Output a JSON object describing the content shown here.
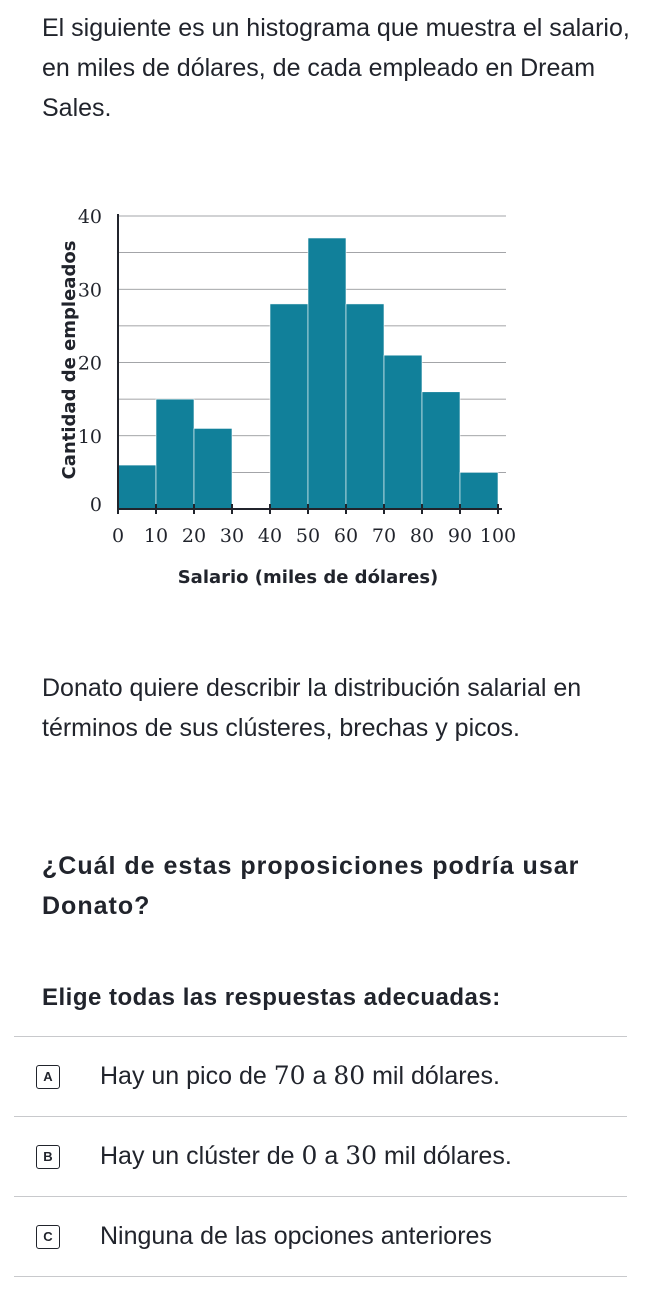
{
  "intro": "El siguiente es un histograma que muestra el salario, en miles de dólares, de cada empleado en Dream Sales.",
  "description": "Donato quiere describir la distribución salarial en términos de sus clústeres, brechas y picos.",
  "question": "¿Cuál de estas proposiciones podría usar Donato?",
  "instruction": "Elige todas las respuestas adecuadas:",
  "chart_data": {
    "type": "bar",
    "title": "",
    "xlabel": "Salario (miles de dólares)",
    "ylabel": "Cantidad de empleados",
    "bins": [
      [
        0,
        10
      ],
      [
        10,
        20
      ],
      [
        20,
        30
      ],
      [
        30,
        40
      ],
      [
        40,
        50
      ],
      [
        50,
        60
      ],
      [
        60,
        70
      ],
      [
        70,
        80
      ],
      [
        80,
        90
      ],
      [
        90,
        100
      ]
    ],
    "values": [
      6,
      15,
      11,
      0,
      28,
      37,
      28,
      21,
      16,
      5
    ],
    "xlim": [
      0,
      100
    ],
    "ylim": [
      0,
      40
    ],
    "xticks": [
      0,
      10,
      20,
      30,
      40,
      50,
      60,
      70,
      80,
      90,
      100
    ],
    "yticks": [
      0,
      10,
      20,
      30,
      40
    ],
    "grid": true,
    "bar_color": "#11809a"
  },
  "choices": [
    {
      "letter": "A",
      "pre": "Hay un pico de ",
      "m1": "70",
      "mid": " a ",
      "m2": "80",
      "post": " mil dólares."
    },
    {
      "letter": "B",
      "pre": "Hay un clúster de ",
      "m1": "0",
      "mid": " a ",
      "m2": "30",
      "post": " mil dólares."
    },
    {
      "letter": "C",
      "text": "Ninguna de las opciones anteriores"
    }
  ]
}
